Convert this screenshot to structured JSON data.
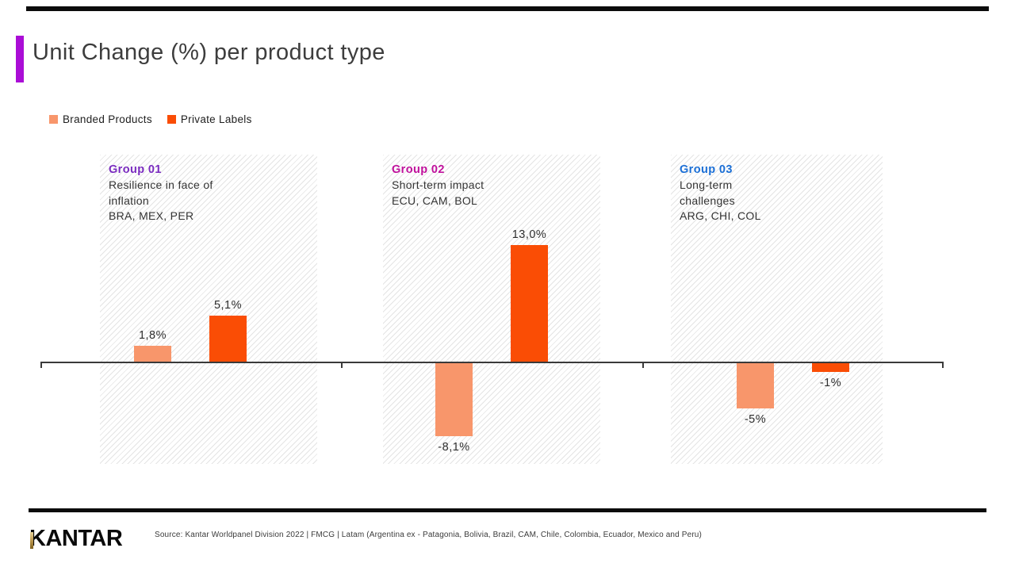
{
  "slide": {
    "title": "Unit Change (%) per product type",
    "accent_color": "#AA0DD6"
  },
  "legend": [
    {
      "label": "Branded Products",
      "color": "#F8966B"
    },
    {
      "label": "Private Labels",
      "color": "#FA4D05"
    }
  ],
  "chart_data": {
    "type": "bar",
    "title": "Unit Change (%) per product type",
    "unit": "percent",
    "decimal_separator": "comma",
    "baseline": 0,
    "categories": [
      {
        "name": "Group 01",
        "name_color": "#7A2BC0",
        "desc": "Resilience in face of\ninflation",
        "countries": "BRA, MEX, PER"
      },
      {
        "name": "Group 02",
        "name_color": "#C0109C",
        "desc": "Short-term impact",
        "countries": "ECU, CAM, BOL"
      },
      {
        "name": "Group 03",
        "name_color": "#1B6FD6",
        "desc": "Long-term\nchallenges",
        "countries": "ARG, CHI, COL"
      }
    ],
    "series": [
      {
        "name": "Branded Products",
        "color": "#F8966B",
        "values": [
          1.8,
          -8.1,
          -5
        ],
        "labels": [
          "1,8%",
          "-8,1%",
          "-5%"
        ]
      },
      {
        "name": "Private Labels",
        "color": "#FA4D05",
        "values": [
          5.1,
          13.0,
          -1
        ],
        "labels": [
          "5,1%",
          "13,0%",
          "-1%"
        ]
      }
    ],
    "legend_position": "top-left",
    "grid": false,
    "panel_style": "diagonal-hatch"
  },
  "footer": {
    "logo": "KANTAR",
    "source": "Source: Kantar Worldpanel Division 2022 | FMCG | Latam (Argentina ex - Patagonia, Bolivia, Brazil, CAM, Chile, Colombia, Ecuador, Mexico and Peru)"
  }
}
